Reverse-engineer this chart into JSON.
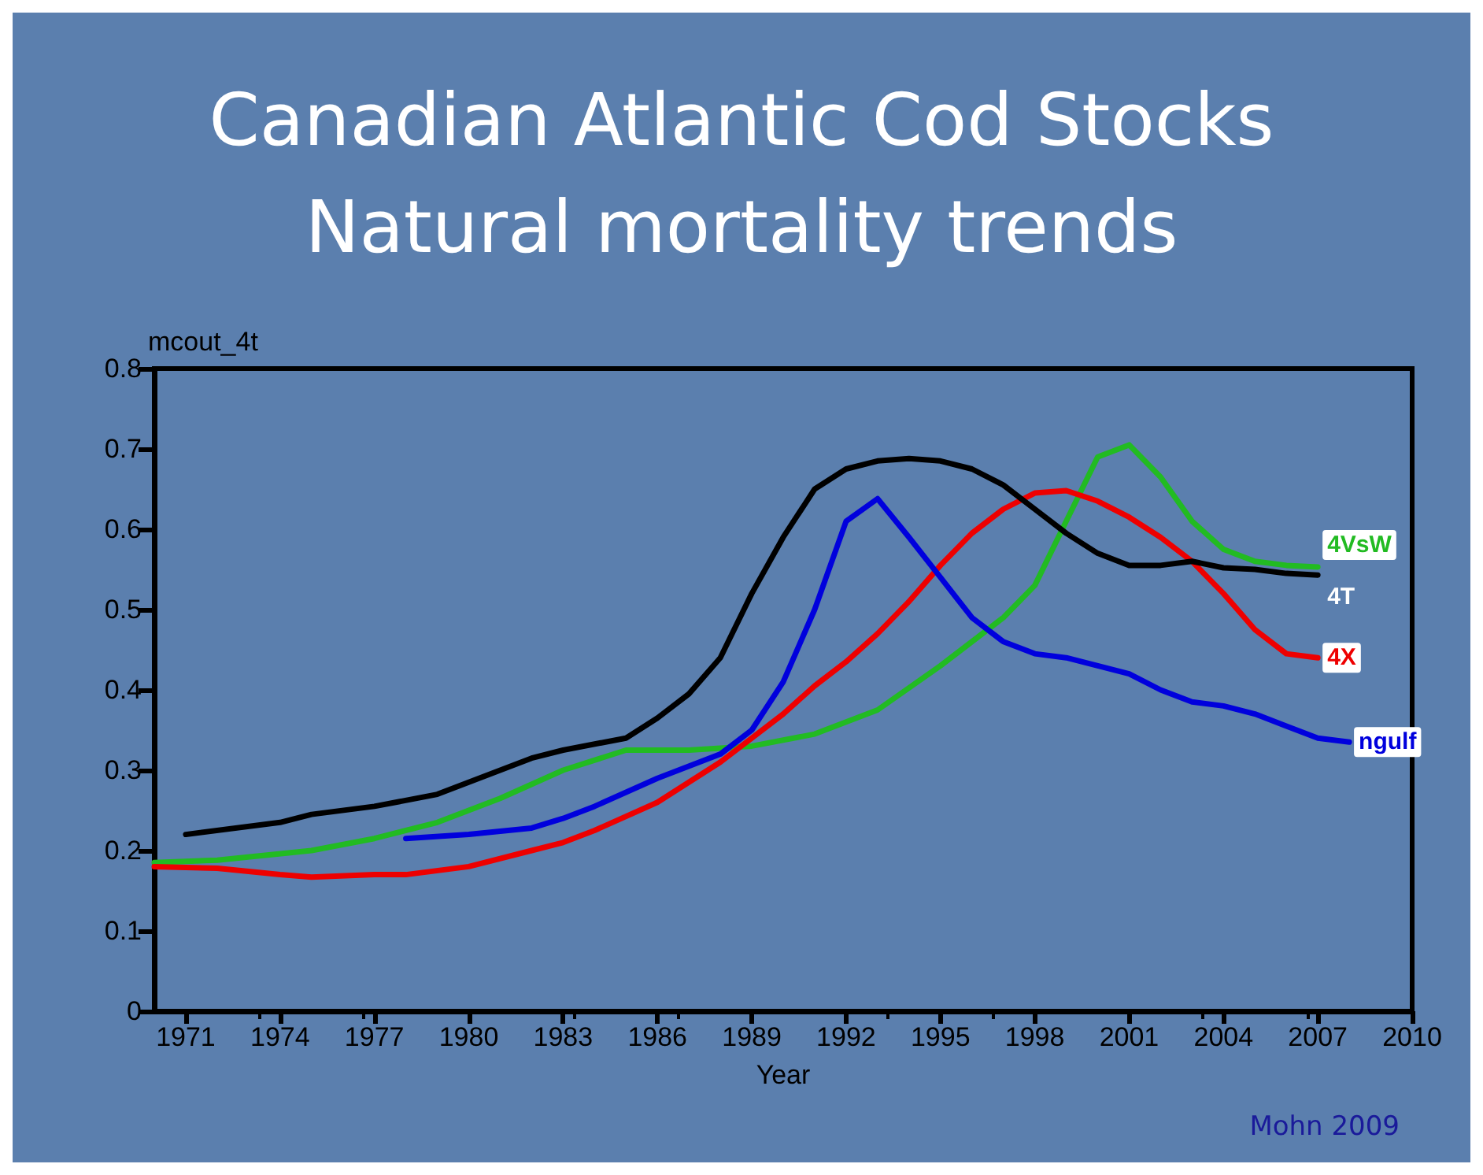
{
  "chart_data": {
    "type": "line",
    "title": "Canadian Atlantic Cod Stocks",
    "subtitle": "Natural mortality trends",
    "xlabel": "Year",
    "ylabel": "mcout_4t",
    "annotations": [
      "Mohn 2009"
    ],
    "xlim": [
      1970,
      2010
    ],
    "xticks": [
      1971,
      1974,
      1977,
      1980,
      1983,
      1986,
      1989,
      1992,
      1995,
      1998,
      2001,
      2004,
      2007,
      2010
    ],
    "ylim": [
      0,
      0.8
    ],
    "yticks": [
      0,
      0.1,
      0.2,
      0.3,
      0.4,
      0.5,
      0.6,
      0.7,
      0.8
    ],
    "grid": false,
    "legend": false,
    "marker": "none",
    "line_style": "solid",
    "series": [
      {
        "name": "4T",
        "color": "#000000",
        "x": [
          1971,
          1974,
          1975,
          1977,
          1979,
          1980,
          1982,
          1983,
          1985,
          1986,
          1987,
          1988,
          1989,
          1990,
          1991,
          1992,
          1993,
          1994,
          1995,
          1996,
          1997,
          1998,
          1999,
          2000,
          2001,
          2002,
          2003,
          2004,
          2005,
          2006,
          2007
        ],
        "values": [
          0.22,
          0.235,
          0.245,
          0.255,
          0.27,
          0.285,
          0.315,
          0.325,
          0.34,
          0.365,
          0.395,
          0.44,
          0.52,
          0.59,
          0.65,
          0.675,
          0.685,
          0.688,
          0.685,
          0.675,
          0.655,
          0.625,
          0.595,
          0.57,
          0.555,
          0.555,
          0.56,
          0.552,
          0.55,
          0.545,
          0.543
        ]
      },
      {
        "name": "ngulf",
        "color": "#0000dd",
        "x": [
          1978,
          1980,
          1982,
          1983,
          1984,
          1986,
          1988,
          1989,
          1990,
          1991,
          1992,
          1993,
          1994,
          1995,
          1996,
          1997,
          1998,
          1999,
          2000,
          2001,
          2002,
          2003,
          2004,
          2005,
          2006,
          2007,
          2008
        ],
        "values": [
          0.215,
          0.22,
          0.228,
          0.24,
          0.255,
          0.29,
          0.32,
          0.35,
          0.41,
          0.5,
          0.61,
          0.638,
          0.59,
          0.54,
          0.49,
          0.46,
          0.445,
          0.44,
          0.43,
          0.42,
          0.4,
          0.385,
          0.38,
          0.37,
          0.355,
          0.34,
          0.335
        ]
      },
      {
        "name": "4X",
        "color": "#ee0000",
        "x": [
          1970,
          1972,
          1974,
          1975,
          1977,
          1978,
          1980,
          1982,
          1983,
          1984,
          1986,
          1988,
          1989,
          1990,
          1991,
          1992,
          1993,
          1994,
          1995,
          1996,
          1997,
          1998,
          1999,
          2000,
          2001,
          2002,
          2003,
          2004,
          2005,
          2006,
          2007
        ],
        "values": [
          0.18,
          0.178,
          0.17,
          0.167,
          0.17,
          0.17,
          0.18,
          0.2,
          0.21,
          0.225,
          0.26,
          0.31,
          0.34,
          0.37,
          0.405,
          0.435,
          0.47,
          0.51,
          0.555,
          0.595,
          0.625,
          0.645,
          0.648,
          0.635,
          0.615,
          0.59,
          0.56,
          0.52,
          0.475,
          0.445,
          0.44
        ]
      },
      {
        "name": "4VsW",
        "color": "#22bb22",
        "x": [
          1970,
          1972,
          1975,
          1977,
          1979,
          1981,
          1983,
          1985,
          1987,
          1989,
          1991,
          1993,
          1995,
          1997,
          1998,
          1999,
          2000,
          2001,
          2002,
          2003,
          2004,
          2005,
          2006,
          2007
        ],
        "values": [
          0.185,
          0.188,
          0.2,
          0.215,
          0.235,
          0.265,
          0.3,
          0.325,
          0.325,
          0.33,
          0.345,
          0.375,
          0.43,
          0.49,
          0.53,
          0.61,
          0.69,
          0.705,
          0.665,
          0.61,
          0.575,
          0.56,
          0.555,
          0.553
        ]
      }
    ]
  }
}
